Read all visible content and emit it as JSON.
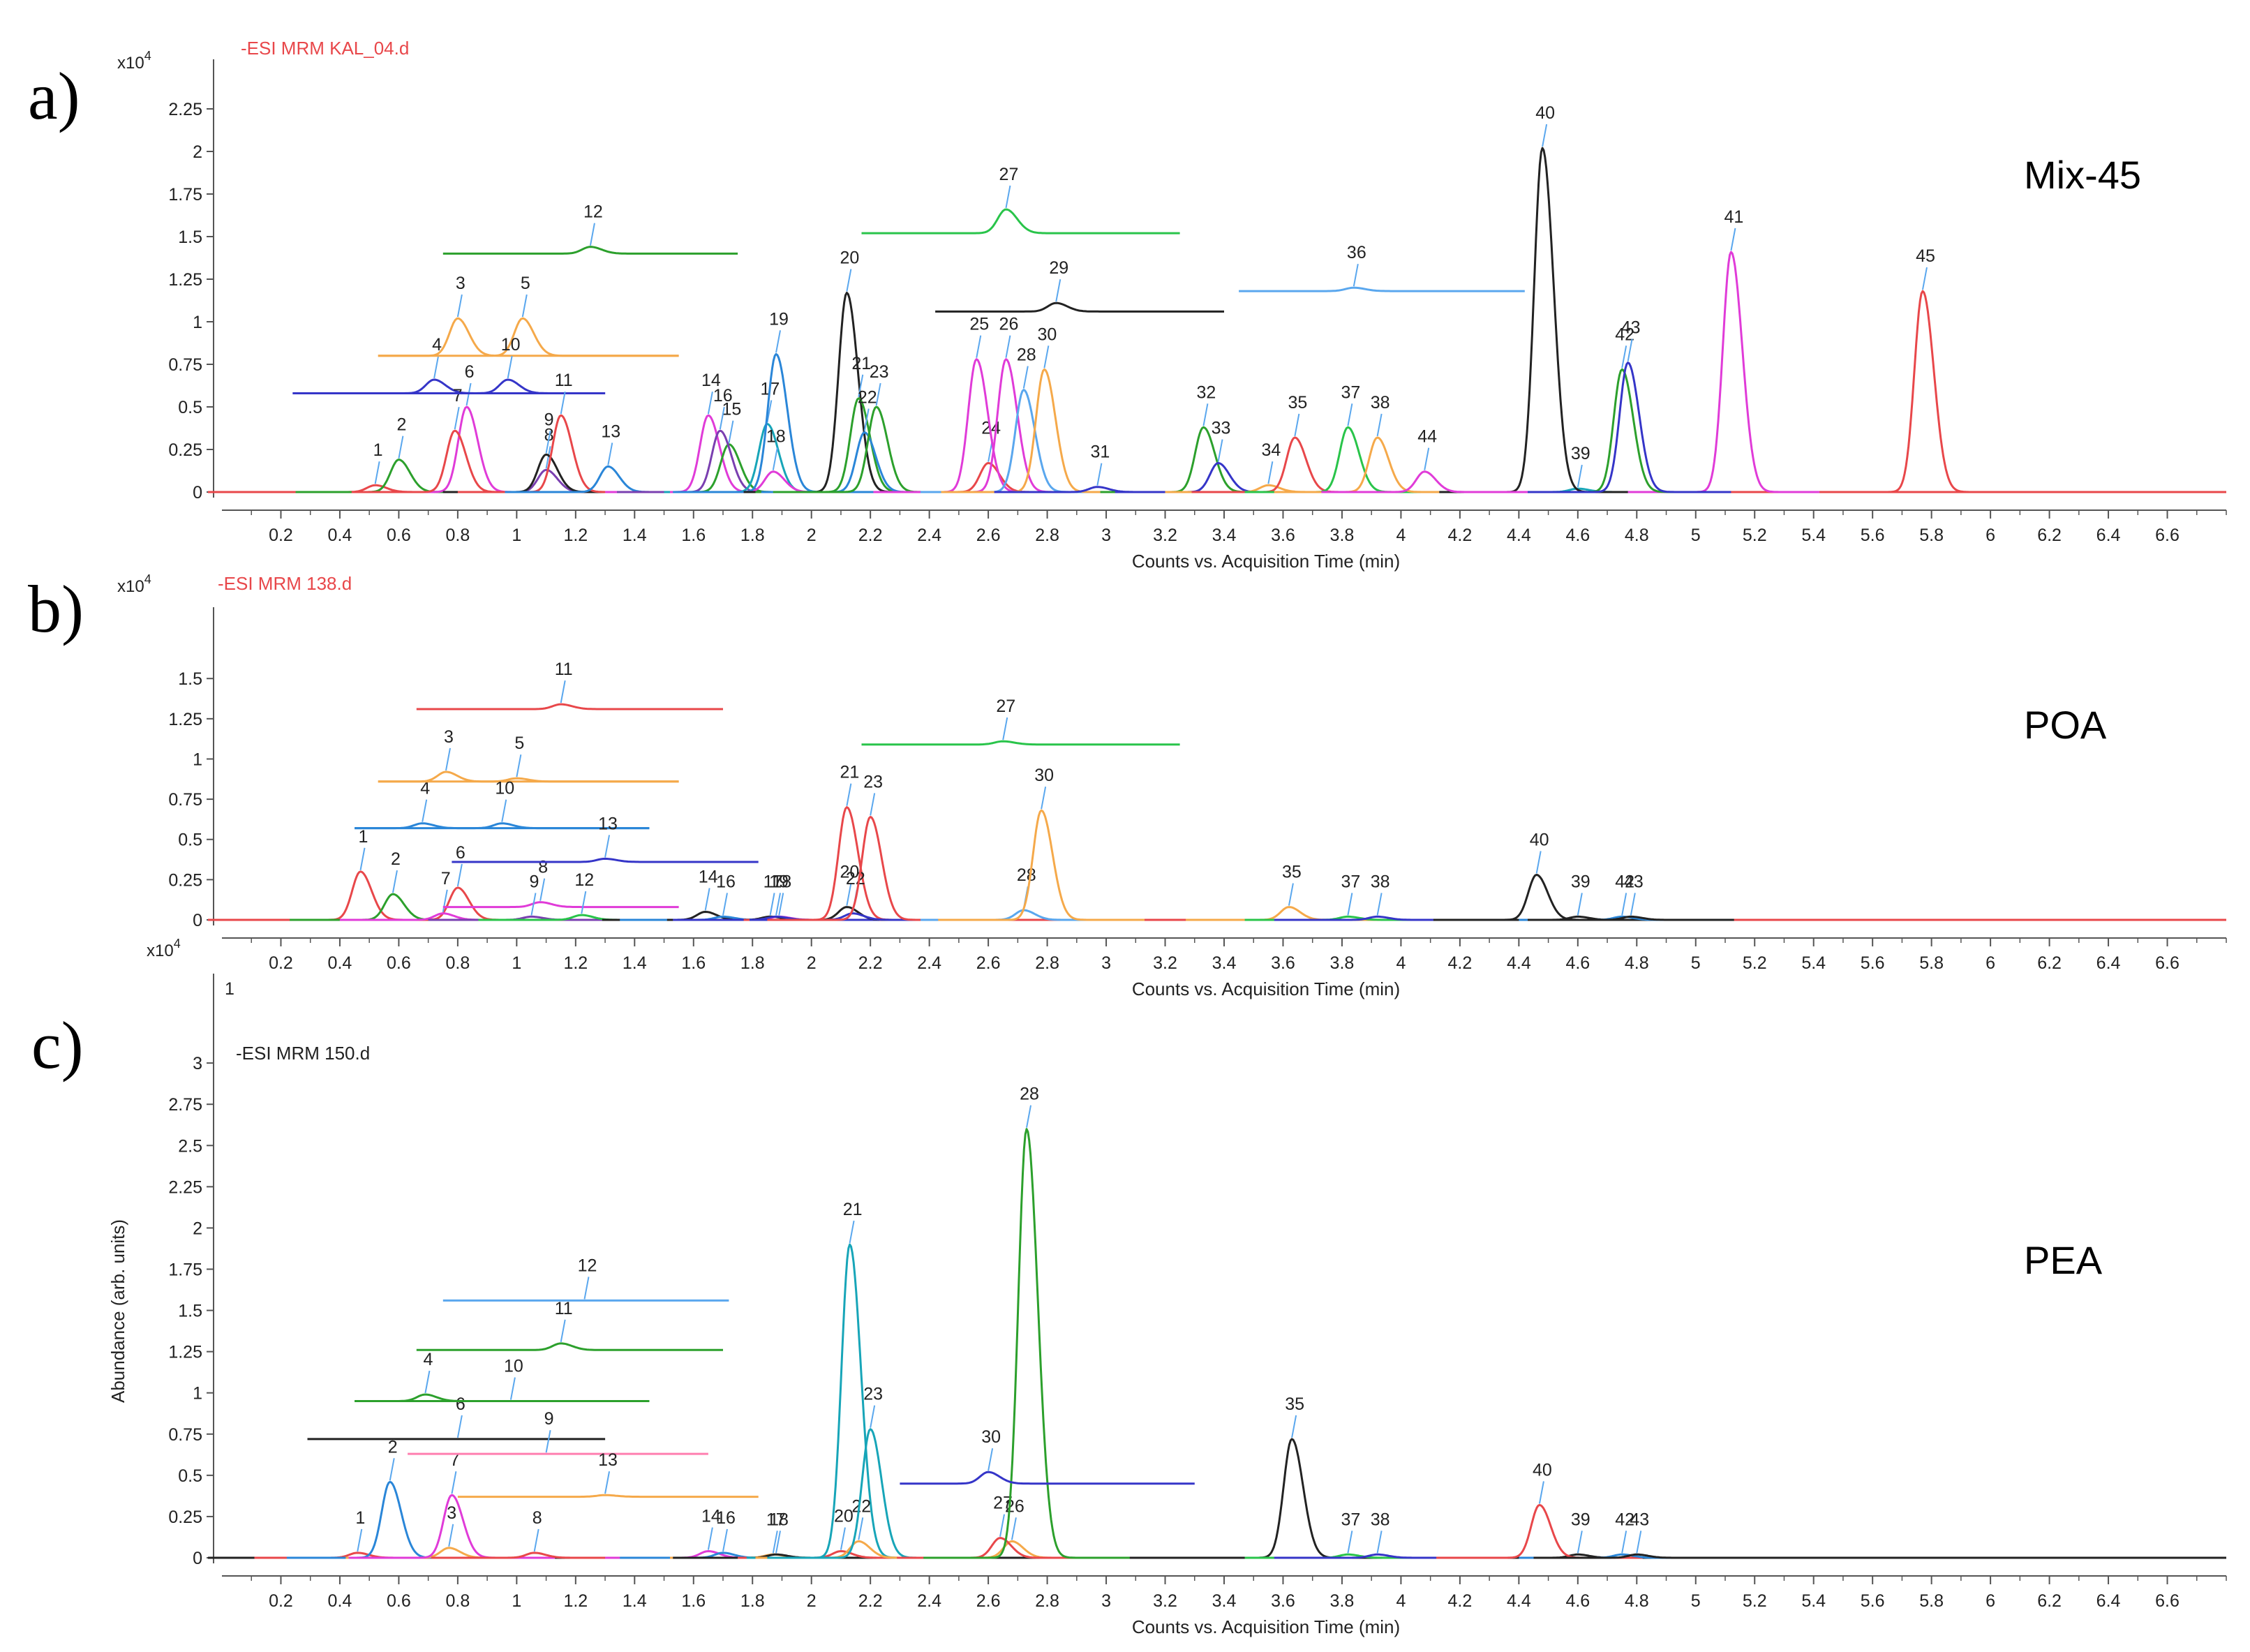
{
  "figure": {
    "x_unit_label": "Counts vs. Acquisition Time (min)",
    "y_title_panel_c": "Abundance (arb. units)",
    "exponent_label": "x10",
    "exponent_power": "4"
  },
  "colors": {
    "red": "#e8474a",
    "green": "#2ca02c",
    "blue": "#2a86d8",
    "orange": "#f5a94a",
    "magenta": "#e03bd8",
    "black": "#222222",
    "navy": "#3535c8",
    "cyan": "#17a5b8",
    "lime": "#29c44a",
    "pink": "#ff7fb0",
    "light_blue": "#5aa7ee",
    "purple": "#7a3fb0"
  },
  "chart_data": [
    {
      "panel": "a)",
      "type": "line",
      "file_label": "-ESI MRM KAL_04.d",
      "file_label_color": "#e8474a",
      "sample": "Mix-45",
      "title": "",
      "xlabel": "Counts vs. Acquisition Time (min)",
      "ylabel": "",
      "xlim": [
        0,
        6.8
      ],
      "ylim": [
        0,
        2.5
      ],
      "x_ticks": [
        "0.2",
        "0.4",
        "0.6",
        "0.8",
        "1",
        "1.2",
        "1.4",
        "1.6",
        "1.8",
        "2",
        "2.2",
        "2.4",
        "2.6",
        "2.8",
        "3",
        "3.2",
        "3.4",
        "3.6",
        "3.8",
        "4",
        "4.2",
        "4.4",
        "4.6",
        "4.8",
        "5",
        "5.2",
        "5.4",
        "5.6",
        "5.8",
        "6",
        "6.2",
        "6.4",
        "6.6"
      ],
      "y_ticks": [
        "0",
        "0.25",
        "0.5",
        "0.75",
        "1",
        "1.25",
        "1.5",
        "1.75",
        "2",
        "2.25"
      ],
      "peaks": [
        {
          "label": "1",
          "rt": 0.52,
          "height": 0.04,
          "color": "red"
        },
        {
          "label": "2",
          "rt": 0.6,
          "height": 0.19,
          "color": "green"
        },
        {
          "label": "3",
          "rt": 0.8,
          "height": 1.02,
          "color": "orange",
          "baseline": 0.8,
          "from": 0.53,
          "to": 1.55
        },
        {
          "label": "4",
          "rt": 0.72,
          "height": 0.66,
          "color": "navy",
          "baseline": 0.58,
          "from": 0.24,
          "to": 1.3
        },
        {
          "label": "5",
          "rt": 1.02,
          "height": 1.02,
          "color": "orange",
          "baseline": 0.8,
          "from": 0.53,
          "to": 1.55
        },
        {
          "label": "6",
          "rt": 0.83,
          "height": 0.5,
          "color": "magenta"
        },
        {
          "label": "7",
          "rt": 0.79,
          "height": 0.36,
          "color": "red"
        },
        {
          "label": "8",
          "rt": 1.1,
          "height": 0.13,
          "color": "purple"
        },
        {
          "label": "9",
          "rt": 1.1,
          "height": 0.22,
          "color": "black"
        },
        {
          "label": "10",
          "rt": 0.97,
          "height": 0.66,
          "color": "navy",
          "baseline": 0.58,
          "from": 0.24,
          "to": 1.3
        },
        {
          "label": "11",
          "rt": 1.15,
          "height": 0.45,
          "color": "red"
        },
        {
          "label": "12",
          "rt": 1.25,
          "height": 1.44,
          "color": "green",
          "baseline": 1.4,
          "from": 0.75,
          "to": 1.75
        },
        {
          "label": "13",
          "rt": 1.31,
          "height": 0.15,
          "color": "blue"
        },
        {
          "label": "14",
          "rt": 1.65,
          "height": 0.45,
          "color": "magenta"
        },
        {
          "label": "15",
          "rt": 1.72,
          "height": 0.28,
          "color": "green"
        },
        {
          "label": "16",
          "rt": 1.69,
          "height": 0.36,
          "color": "purple"
        },
        {
          "label": "17",
          "rt": 1.85,
          "height": 0.4,
          "color": "cyan"
        },
        {
          "label": "18",
          "rt": 1.87,
          "height": 0.12,
          "color": "magenta"
        },
        {
          "label": "19",
          "rt": 1.88,
          "height": 0.81,
          "color": "blue"
        },
        {
          "label": "20",
          "rt": 2.12,
          "height": 1.17,
          "color": "black"
        },
        {
          "label": "21",
          "rt": 2.16,
          "height": 0.55,
          "color": "green"
        },
        {
          "label": "22",
          "rt": 2.18,
          "height": 0.35,
          "color": "blue"
        },
        {
          "label": "23",
          "rt": 2.22,
          "height": 0.5,
          "color": "green"
        },
        {
          "label": "24",
          "rt": 2.6,
          "height": 0.17,
          "color": "red"
        },
        {
          "label": "25",
          "rt": 2.56,
          "height": 0.78,
          "color": "magenta"
        },
        {
          "label": "26",
          "rt": 2.66,
          "height": 0.78,
          "color": "magenta"
        },
        {
          "label": "27",
          "rt": 2.66,
          "height": 1.66,
          "color": "lime",
          "baseline": 1.52,
          "from": 2.17,
          "to": 3.25
        },
        {
          "label": "28",
          "rt": 2.72,
          "height": 0.6,
          "color": "light_blue"
        },
        {
          "label": "29",
          "rt": 2.83,
          "height": 1.11,
          "color": "black",
          "baseline": 1.06,
          "from": 2.42,
          "to": 3.4
        },
        {
          "label": "30",
          "rt": 2.79,
          "height": 0.72,
          "color": "orange"
        },
        {
          "label": "31",
          "rt": 2.97,
          "height": 0.03,
          "color": "navy"
        },
        {
          "label": "32",
          "rt": 3.33,
          "height": 0.38,
          "color": "green"
        },
        {
          "label": "33",
          "rt": 3.38,
          "height": 0.17,
          "color": "navy"
        },
        {
          "label": "34",
          "rt": 3.55,
          "height": 0.04,
          "color": "orange"
        },
        {
          "label": "35",
          "rt": 3.64,
          "height": 0.32,
          "color": "red"
        },
        {
          "label": "36",
          "rt": 3.84,
          "height": 1.2,
          "color": "light_blue",
          "baseline": 1.18,
          "from": 3.45,
          "to": 4.42
        },
        {
          "label": "37",
          "rt": 3.82,
          "height": 0.38,
          "color": "lime"
        },
        {
          "label": "38",
          "rt": 3.92,
          "height": 0.32,
          "color": "orange"
        },
        {
          "label": "39",
          "rt": 4.6,
          "height": 0.02,
          "color": "cyan"
        },
        {
          "label": "40",
          "rt": 4.48,
          "height": 2.02,
          "color": "black"
        },
        {
          "label": "41",
          "rt": 5.12,
          "height": 1.41,
          "color": "magenta"
        },
        {
          "label": "42",
          "rt": 4.75,
          "height": 0.72,
          "color": "green"
        },
        {
          "label": "43",
          "rt": 4.77,
          "height": 0.76,
          "color": "navy"
        },
        {
          "label": "44",
          "rt": 4.08,
          "height": 0.12,
          "color": "magenta"
        },
        {
          "label": "45",
          "rt": 5.77,
          "height": 1.18,
          "color": "red"
        }
      ]
    },
    {
      "panel": "b)",
      "type": "line",
      "file_label": "-ESI MRM 138.d",
      "file_label_color": "#e8474a",
      "sample": "POA",
      "title": "",
      "xlabel": "Counts vs. Acquisition Time (min)",
      "ylabel": "",
      "xlim": [
        0,
        6.8
      ],
      "ylim": [
        0,
        1.9
      ],
      "x_ticks": [
        "0.2",
        "0.4",
        "0.6",
        "0.8",
        "1",
        "1.2",
        "1.4",
        "1.6",
        "1.8",
        "2",
        "2.2",
        "2.4",
        "2.6",
        "2.8",
        "3",
        "3.2",
        "3.4",
        "3.6",
        "3.8",
        "4",
        "4.2",
        "4.4",
        "4.6",
        "4.8",
        "5",
        "5.2",
        "5.4",
        "5.6",
        "5.8",
        "6",
        "6.2",
        "6.4",
        "6.6"
      ],
      "y_ticks": [
        "0",
        "0.25",
        "0.5",
        "0.75",
        "1",
        "1.25",
        "1.5"
      ],
      "peaks": [
        {
          "label": "1",
          "rt": 0.47,
          "height": 0.3,
          "color": "red"
        },
        {
          "label": "2",
          "rt": 0.58,
          "height": 0.16,
          "color": "green"
        },
        {
          "label": "3",
          "rt": 0.76,
          "height": 0.92,
          "color": "orange",
          "baseline": 0.86,
          "from": 0.53,
          "to": 1.55
        },
        {
          "label": "4",
          "rt": 0.68,
          "height": 0.6,
          "color": "blue",
          "baseline": 0.57,
          "from": 0.45,
          "to": 1.45
        },
        {
          "label": "5",
          "rt": 1.0,
          "height": 0.88,
          "color": "orange",
          "baseline": 0.86,
          "from": 0.53,
          "to": 1.55
        },
        {
          "label": "6",
          "rt": 0.8,
          "height": 0.2,
          "color": "red"
        },
        {
          "label": "7",
          "rt": 0.75,
          "height": 0.04,
          "color": "magenta"
        },
        {
          "label": "8",
          "rt": 1.08,
          "height": 0.11,
          "color": "magenta",
          "baseline": 0.08,
          "from": 0.75,
          "to": 1.55
        },
        {
          "label": "9",
          "rt": 1.05,
          "height": 0.02,
          "color": "purple"
        },
        {
          "label": "10",
          "rt": 0.95,
          "height": 0.6,
          "color": "blue",
          "baseline": 0.57,
          "from": 0.45,
          "to": 1.45
        },
        {
          "label": "11",
          "rt": 1.15,
          "height": 1.34,
          "color": "red",
          "baseline": 1.31,
          "from": 0.66,
          "to": 1.7
        },
        {
          "label": "12",
          "rt": 1.22,
          "height": 0.03,
          "color": "lime"
        },
        {
          "label": "13",
          "rt": 1.3,
          "height": 0.38,
          "color": "navy",
          "baseline": 0.36,
          "from": 0.78,
          "to": 1.82
        },
        {
          "label": "14",
          "rt": 1.64,
          "height": 0.05,
          "color": "black"
        },
        {
          "label": "16",
          "rt": 1.7,
          "height": 0.02,
          "color": "blue"
        },
        {
          "label": "17",
          "rt": 1.86,
          "height": 0.02,
          "color": "black"
        },
        {
          "label": "18",
          "rt": 1.89,
          "height": 0.02,
          "color": "magenta"
        },
        {
          "label": "19",
          "rt": 1.88,
          "height": 0.02,
          "color": "navy"
        },
        {
          "label": "20",
          "rt": 2.12,
          "height": 0.08,
          "color": "black"
        },
        {
          "label": "21",
          "rt": 2.12,
          "height": 0.7,
          "color": "red"
        },
        {
          "label": "22",
          "rt": 2.14,
          "height": 0.04,
          "color": "navy"
        },
        {
          "label": "23",
          "rt": 2.2,
          "height": 0.64,
          "color": "red"
        },
        {
          "label": "27",
          "rt": 2.65,
          "height": 1.11,
          "color": "lime",
          "baseline": 1.09,
          "from": 2.17,
          "to": 3.25
        },
        {
          "label": "28",
          "rt": 2.72,
          "height": 0.06,
          "color": "light_blue"
        },
        {
          "label": "30",
          "rt": 2.78,
          "height": 0.68,
          "color": "orange"
        },
        {
          "label": "35",
          "rt": 3.62,
          "height": 0.08,
          "color": "orange"
        },
        {
          "label": "37",
          "rt": 3.82,
          "height": 0.02,
          "color": "lime"
        },
        {
          "label": "38",
          "rt": 3.92,
          "height": 0.02,
          "color": "navy"
        },
        {
          "label": "39",
          "rt": 4.6,
          "height": 0.02,
          "color": "black"
        },
        {
          "label": "40",
          "rt": 4.46,
          "height": 0.28,
          "color": "black"
        },
        {
          "label": "42",
          "rt": 4.75,
          "height": 0.02,
          "color": "blue"
        },
        {
          "label": "43",
          "rt": 4.78,
          "height": 0.02,
          "color": "black"
        }
      ]
    },
    {
      "panel": "c)",
      "type": "line",
      "file_label": "-ESI MRM 150.d",
      "file_label_color": "#222222",
      "sample": "PEA",
      "title": "",
      "xlabel": "Counts vs. Acquisition Time (min)",
      "ylabel": "Abundance (arb. units)",
      "top_tick_label": "1",
      "xlim": [
        0,
        6.8
      ],
      "ylim": [
        0,
        3.5
      ],
      "x_ticks": [
        "0.2",
        "0.4",
        "0.6",
        "0.8",
        "1",
        "1.2",
        "1.4",
        "1.6",
        "1.8",
        "2",
        "2.2",
        "2.4",
        "2.6",
        "2.8",
        "3",
        "3.2",
        "3.4",
        "3.6",
        "3.8",
        "4",
        "4.2",
        "4.4",
        "4.6",
        "4.8",
        "5",
        "5.2",
        "5.4",
        "5.6",
        "5.8",
        "6",
        "6.2",
        "6.4",
        "6.6"
      ],
      "y_ticks": [
        "0",
        "0.25",
        "0.5",
        "0.75",
        "1",
        "1.25",
        "1.5",
        "1.75",
        "2",
        "2.25",
        "2.5",
        "2.75",
        "3"
      ],
      "peaks": [
        {
          "label": "1",
          "rt": 0.46,
          "height": 0.03,
          "color": "red"
        },
        {
          "label": "2",
          "rt": 0.57,
          "height": 0.46,
          "color": "blue"
        },
        {
          "label": "3",
          "rt": 0.77,
          "height": 0.06,
          "color": "orange"
        },
        {
          "label": "4",
          "rt": 0.69,
          "height": 0.99,
          "color": "green",
          "baseline": 0.95,
          "from": 0.45,
          "to": 1.45
        },
        {
          "label": "6",
          "rt": 0.8,
          "height": 0.72,
          "color": "black",
          "baseline": 0.72,
          "from": 0.29,
          "to": 1.3
        },
        {
          "label": "7",
          "rt": 0.78,
          "height": 0.38,
          "color": "magenta"
        },
        {
          "label": "8",
          "rt": 1.06,
          "height": 0.03,
          "color": "red"
        },
        {
          "label": "9",
          "rt": 1.1,
          "height": 0.63,
          "color": "pink",
          "baseline": 0.63,
          "from": 0.63,
          "to": 1.65
        },
        {
          "label": "10",
          "rt": 0.98,
          "height": 0.95,
          "color": "green",
          "baseline": 0.95,
          "from": 0.45,
          "to": 1.45
        },
        {
          "label": "11",
          "rt": 1.15,
          "height": 1.3,
          "color": "green",
          "baseline": 1.26,
          "from": 0.66,
          "to": 1.7
        },
        {
          "label": "12",
          "rt": 1.23,
          "height": 1.56,
          "color": "light_blue",
          "baseline": 1.56,
          "from": 0.75,
          "to": 1.72
        },
        {
          "label": "13",
          "rt": 1.3,
          "height": 0.38,
          "color": "orange",
          "baseline": 0.37,
          "from": 0.8,
          "to": 1.82
        },
        {
          "label": "14",
          "rt": 1.65,
          "height": 0.04,
          "color": "magenta"
        },
        {
          "label": "16",
          "rt": 1.7,
          "height": 0.03,
          "color": "blue"
        },
        {
          "label": "17",
          "rt": 1.87,
          "height": 0.02,
          "color": "orange"
        },
        {
          "label": "18",
          "rt": 1.88,
          "height": 0.02,
          "color": "black"
        },
        {
          "label": "20",
          "rt": 2.1,
          "height": 0.04,
          "color": "red"
        },
        {
          "label": "21",
          "rt": 2.13,
          "height": 1.9,
          "color": "cyan"
        },
        {
          "label": "22",
          "rt": 2.16,
          "height": 0.1,
          "color": "orange"
        },
        {
          "label": "23",
          "rt": 2.2,
          "height": 0.78,
          "color": "cyan"
        },
        {
          "label": "26",
          "rt": 2.68,
          "height": 0.1,
          "color": "orange"
        },
        {
          "label": "27",
          "rt": 2.64,
          "height": 0.12,
          "color": "red"
        },
        {
          "label": "28",
          "rt": 2.73,
          "height": 2.6,
          "color": "green"
        },
        {
          "label": "30",
          "rt": 2.6,
          "height": 0.52,
          "color": "navy",
          "baseline": 0.45,
          "from": 2.3,
          "to": 3.3
        },
        {
          "label": "35",
          "rt": 3.63,
          "height": 0.72,
          "color": "black"
        },
        {
          "label": "37",
          "rt": 3.82,
          "height": 0.02,
          "color": "lime"
        },
        {
          "label": "38",
          "rt": 3.92,
          "height": 0.02,
          "color": "navy"
        },
        {
          "label": "39",
          "rt": 4.6,
          "height": 0.02,
          "color": "black"
        },
        {
          "label": "40",
          "rt": 4.47,
          "height": 0.32,
          "color": "red"
        },
        {
          "label": "42",
          "rt": 4.75,
          "height": 0.02,
          "color": "blue"
        },
        {
          "label": "43",
          "rt": 4.8,
          "height": 0.02,
          "color": "black"
        }
      ]
    }
  ]
}
